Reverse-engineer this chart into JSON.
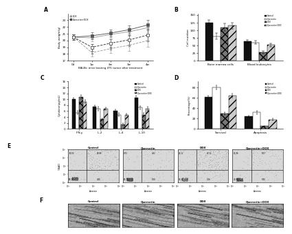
{
  "panel_A": {
    "xlabel": "BALB/c mice bearing 4T1 tumor after treatment",
    "ylabel": "Body weight(g)",
    "x": [
      0,
      1,
      2,
      3,
      4
    ],
    "xlabels": [
      "0d",
      "1w",
      "2w",
      "3w",
      "4w"
    ],
    "series": {
      "Control": [
        20.5,
        20.4,
        20.9,
        21.3,
        21.9
      ],
      "Quercetin": [
        20.5,
        20.7,
        21.1,
        21.6,
        22.3
      ],
      "DOX": [
        20.5,
        18.2,
        18.8,
        19.3,
        20.0
      ],
      "Quercetin+DOX": [
        20.5,
        19.0,
        19.6,
        20.1,
        20.8
      ]
    },
    "errors": {
      "Control": [
        0.4,
        0.5,
        0.5,
        0.6,
        0.6
      ],
      "Quercetin": [
        0.4,
        0.5,
        0.5,
        0.6,
        0.7
      ],
      "DOX": [
        0.4,
        0.6,
        0.7,
        0.8,
        0.9
      ],
      "Quercetin+DOX": [
        0.4,
        0.5,
        0.6,
        0.7,
        0.8
      ]
    },
    "ylim": [
      17,
      24
    ],
    "yticks": [
      17,
      18,
      19,
      20,
      21,
      22,
      23
    ]
  },
  "panel_B": {
    "ylabel": "Cell number",
    "groups": [
      "Bone marrow cells",
      "Blood leukocytes"
    ],
    "categories": [
      "Control",
      "Quercetin",
      "DOX",
      "Quercetin+DOC"
    ],
    "values": {
      "Bone marrow cells": [
        125,
        80,
        110,
        115
      ],
      "Blood leukocytes": [
        63,
        60,
        28,
        52
      ]
    },
    "errors": {
      "Bone marrow cells": [
        8,
        10,
        12,
        10
      ],
      "Blood leukocytes": [
        5,
        6,
        4,
        6
      ]
    },
    "ylim": [
      0,
      155
    ],
    "yticks": [
      0,
      25,
      50,
      75,
      100,
      125,
      150
    ],
    "colors": [
      "#111111",
      "#ffffff",
      "#777777",
      "#cccccc"
    ],
    "hatches": [
      "",
      "",
      "xxx",
      "///"
    ]
  },
  "panel_C": {
    "ylabel": "Cytokine(pg/mL)",
    "groups": [
      "IFN-y",
      "IL-2",
      "IL-4",
      "IL-10"
    ],
    "categories": [
      "Control",
      "Quercetin",
      "DOX",
      "Quercetin+DOX"
    ],
    "values": {
      "IFN-y": [
        10.0,
        5.5,
        10.8,
        9.2
      ],
      "IL-2": [
        7.5,
        6.8,
        3.2,
        6.8
      ],
      "IL-4": [
        6.2,
        4.8,
        1.5,
        4.8
      ],
      "IL-10": [
        10.5,
        7.2,
        4.8,
        6.8
      ]
    },
    "errors": {
      "IFN-y": [
        0.6,
        0.5,
        0.7,
        0.6
      ],
      "IL-2": [
        0.5,
        0.6,
        0.4,
        0.5
      ],
      "IL-4": [
        0.4,
        0.5,
        0.3,
        0.4
      ],
      "IL-10": [
        0.7,
        0.6,
        0.5,
        0.6
      ]
    },
    "ylim": [
      0,
      16
    ],
    "yticks": [
      0,
      2,
      4,
      6,
      8,
      10,
      12,
      14,
      16
    ],
    "colors": [
      "#111111",
      "#ffffff",
      "#777777",
      "#cccccc"
    ],
    "hatches": [
      "",
      "",
      "xxx",
      "///"
    ]
  },
  "panel_D": {
    "ylabel": "Percentage(%)",
    "groups": [
      "Survival",
      "Apoptosis"
    ],
    "categories": [
      "Control",
      "Quercetin",
      "DOX",
      "Quercetin+DOX"
    ],
    "values": {
      "Survival": [
        62,
        80,
        30,
        65
      ],
      "Apoptosis": [
        24,
        32,
        5,
        18
      ]
    },
    "errors": {
      "Survival": [
        3,
        4,
        3,
        4
      ],
      "Apoptosis": [
        2,
        3,
        1,
        2
      ]
    },
    "ylim": [
      0,
      92
    ],
    "yticks": [
      0,
      20,
      40,
      60,
      80
    ],
    "colors": [
      "#111111",
      "#ffffff",
      "#777777",
      "#cccccc"
    ],
    "hatches": [
      "",
      "",
      "xxx",
      "///"
    ]
  },
  "panel_E": {
    "conditions": [
      "Control",
      "Quercetin",
      "DOX",
      "Quercetin+DOX"
    ],
    "quadrant_labels": {
      "Control": {
        "UL": "10.50",
        "UR": "25.89",
        "LL": "58.75",
        "LR": "4.66"
      },
      "Quercetin": {
        "UL": "9.73",
        "UR": "4.52",
        "LL": "80.76",
        "LR": "5.00"
      },
      "DOX": {
        "UL": "22.11",
        "UR": "36.11",
        "LL": "39.32",
        "LR": "2.56"
      },
      "Quercetin+DOX": {
        "UL": "12.99",
        "UR": "8.27",
        "LL": "72.98",
        "LR": "5.85"
      }
    },
    "ylabel": "7-AAD",
    "xlabel": "Annexin",
    "gate_x": 30,
    "gate_y": 30,
    "xmin": 1,
    "xmax": 10000,
    "ymin": 1,
    "ymax": 10000
  },
  "panel_F": {
    "conditions": [
      "Control",
      "Quercetin",
      "DOX",
      "Quercetin+DOX"
    ]
  },
  "background_color": "#ffffff",
  "label_A": "A",
  "label_B": "B",
  "label_C": "C",
  "label_D": "D",
  "label_E": "E",
  "label_F": "F"
}
